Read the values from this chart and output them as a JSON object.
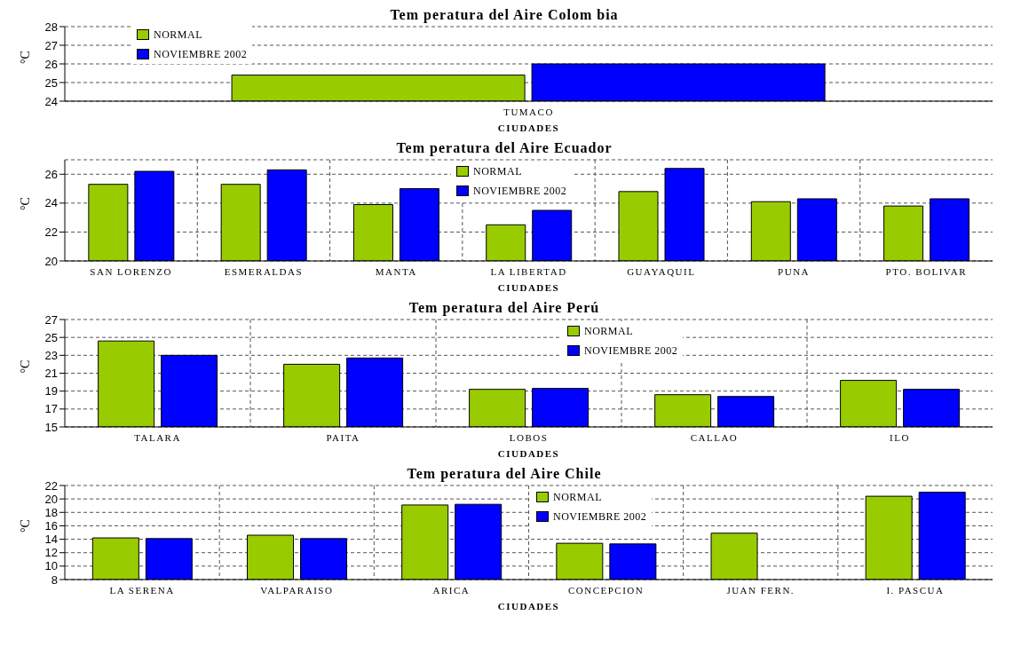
{
  "chart_data": [
    {
      "type": "bar",
      "title": "Tem peratura del Aire Colom bia",
      "xlabel": "CIUDADES",
      "ylabel": "°C",
      "categories": [
        "TUMACO"
      ],
      "series": [
        {
          "name": "NORMAL",
          "color": "#99cc00",
          "values": [
            25.4
          ]
        },
        {
          "name": "NOVIEMBRE 2002",
          "color": "#0000ff",
          "values": [
            26.0
          ]
        }
      ],
      "ylim": [
        24,
        28
      ],
      "yticks": [
        24,
        25,
        26,
        27,
        28
      ],
      "grid": "y",
      "legend": "top left"
    },
    {
      "type": "bar",
      "title": "Tem peratura del Aire Ecuador",
      "xlabel": "CIUDADES",
      "ylabel": "°C",
      "categories": [
        "SAN LORENZO",
        "ESMERALDAS",
        "MANTA",
        "LA LIBERTAD",
        "GUAYAQUIL",
        "PUNA",
        "PTO. BOLIVAR"
      ],
      "series": [
        {
          "name": "NORMAL",
          "color": "#99cc00",
          "values": [
            25.3,
            25.3,
            23.9,
            22.5,
            24.8,
            24.1,
            23.8
          ]
        },
        {
          "name": "NOVIEMBRE 2002",
          "color": "#0000ff",
          "values": [
            26.2,
            26.3,
            25.0,
            23.5,
            26.4,
            24.3,
            24.3
          ]
        }
      ],
      "ylim": [
        20,
        27
      ],
      "yticks": [
        20,
        22,
        24,
        26
      ],
      "grid": true,
      "legend": "top"
    },
    {
      "type": "bar",
      "title": "Tem peratura del Aire Perú",
      "xlabel": "CIUDADES",
      "ylabel": "°C",
      "categories": [
        "TALARA",
        "PAITA",
        "LOBOS",
        "CALLAO",
        "ILO"
      ],
      "series": [
        {
          "name": "NORMAL",
          "color": "#99cc00",
          "values": [
            24.6,
            22.0,
            19.2,
            18.6,
            20.2
          ]
        },
        {
          "name": "NOVIEMBRE 2002",
          "color": "#0000ff",
          "values": [
            23.0,
            22.7,
            19.3,
            18.4,
            19.2
          ]
        }
      ],
      "ylim": [
        15,
        27
      ],
      "yticks": [
        15,
        17,
        19,
        21,
        23,
        25,
        27
      ],
      "grid": true,
      "legend": "top"
    },
    {
      "type": "bar",
      "title": "Tem peratura del Aire Chile",
      "xlabel": "CIUDADES",
      "ylabel": "°C",
      "categories": [
        "LA SERENA",
        "VALPARAISO",
        "ARICA",
        "CONCEPCION",
        "JUAN FERN.",
        "I. PASCUA"
      ],
      "series": [
        {
          "name": "NORMAL",
          "color": "#99cc00",
          "values": [
            14.2,
            14.6,
            19.1,
            13.4,
            14.9,
            20.4
          ]
        },
        {
          "name": "NOVIEMBRE 2002",
          "color": "#0000ff",
          "values": [
            14.1,
            14.1,
            19.2,
            13.3,
            null,
            21.0
          ]
        }
      ],
      "ylim": [
        8,
        22
      ],
      "yticks": [
        8,
        10,
        12,
        14,
        16,
        18,
        20,
        22
      ],
      "grid": true,
      "legend": "top"
    }
  ]
}
